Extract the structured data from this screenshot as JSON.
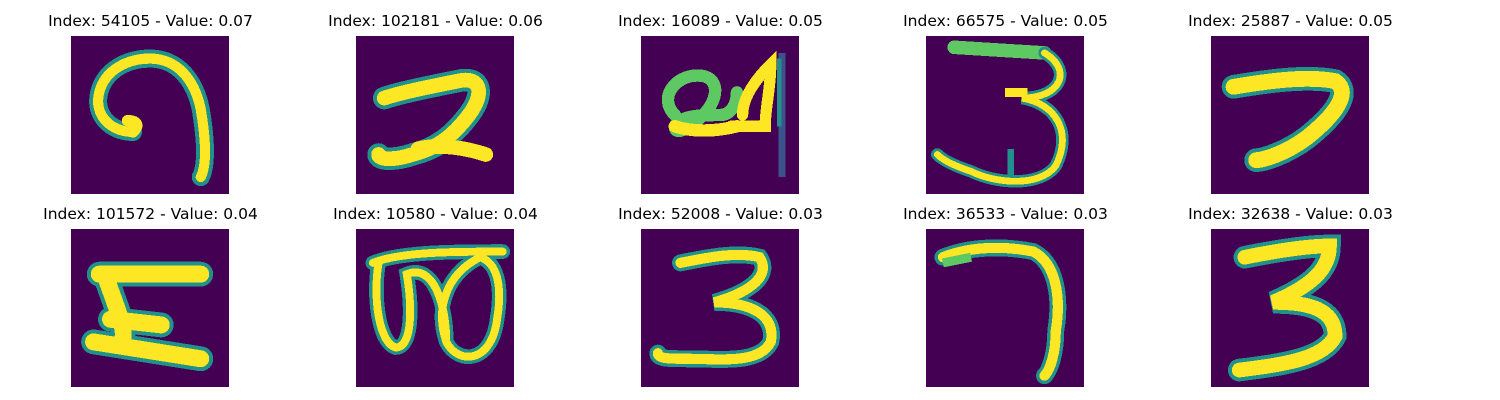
{
  "colors": {
    "background": "#440154",
    "low": "#3b528b",
    "mid": "#21918c",
    "high": "#5ec962",
    "peak": "#fde725"
  },
  "panels": [
    {
      "title": "Index: 54105 - Value: 0.07",
      "digit_shape": "hook-9"
    },
    {
      "title": "Index: 102181 - Value: 0.06",
      "digit_shape": "two"
    },
    {
      "title": "Index: 16089 - Value: 0.05",
      "digit_shape": "scribble-24"
    },
    {
      "title": "Index: 66575 - Value: 0.05",
      "digit_shape": "three-wide"
    },
    {
      "title": "Index: 25887 - Value: 0.05",
      "digit_shape": "seven-short"
    },
    {
      "title": "Index: 101572 - Value: 0.04",
      "digit_shape": "zee"
    },
    {
      "title": "Index: 10580 - Value: 0.04",
      "digit_shape": "eight-loops"
    },
    {
      "title": "Index: 52008 - Value: 0.03",
      "digit_shape": "three"
    },
    {
      "title": "Index: 36533 - Value: 0.03",
      "digit_shape": "seven-curve"
    },
    {
      "title": "Index: 32638 - Value: 0.03",
      "digit_shape": "three-bold"
    }
  ]
}
